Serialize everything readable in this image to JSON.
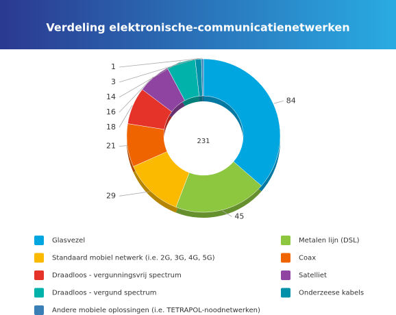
{
  "chart_data": {
    "type": "pie",
    "title": "Verdeling elektronische-communicatienetwerken",
    "center_label": 231,
    "categories": [
      "Glasvezel",
      "Metalen lijn (DSL)",
      "Standaard mobiel netwerk (i.e. 2G, 3G, 4G, 5G)",
      "Coax",
      "Draadloos - vergunningsvrij spectrum",
      "Satelliet",
      "Draadloos - vergund spectrum",
      "Onderzeese kabels",
      "Andere mobiele oplossingen (i.e. TETRAPOL-noodnetwerken)"
    ],
    "values": [
      84,
      45,
      29,
      21,
      18,
      16,
      14,
      3,
      1
    ],
    "colors": [
      "#00a6e0",
      "#8dc63f",
      "#fbb900",
      "#f06400",
      "#e63329",
      "#8e44a0",
      "#00b2a9",
      "#0090a8",
      "#3a7fb5"
    ],
    "donut": true,
    "legend": "bottom"
  }
}
